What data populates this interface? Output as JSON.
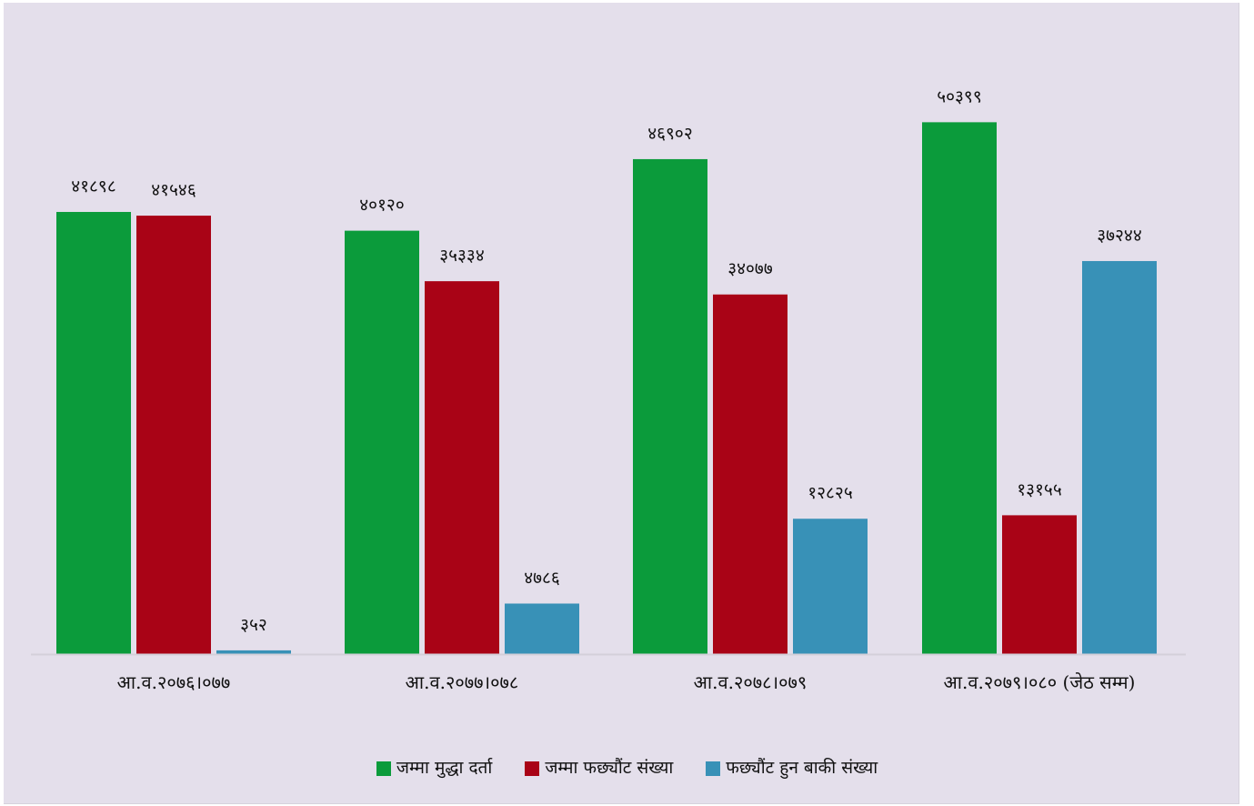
{
  "colors": {
    "background": "#e4dfeb",
    "axis": "#d3cfd9"
  },
  "legend": [
    {
      "label": "जम्मा मुद्धा दर्ता",
      "color": "#0b9b3b"
    },
    {
      "label": "जम्मा फछ्यौंट संख्या",
      "color": "#a90316"
    },
    {
      "label": "फछ्यौंट हुन बाकी संख्या",
      "color": "#3891b7"
    }
  ],
  "chart_data": {
    "type": "bar",
    "categories": [
      "आ.व.२०७६।०७७",
      "आ.व.२०७७।०७८",
      "आ.व.२०७८।०७९",
      "आ.व.२०७९।०८० (जेठ सम्म)"
    ],
    "series": [
      {
        "name": "जम्मा मुद्धा दर्ता",
        "color": "#0b9b3b",
        "values": [
          41898,
          40120,
          46902,
          50399
        ],
        "labels": [
          "४१८९८",
          "४०१२०",
          "४६९०२",
          "५०३९९"
        ]
      },
      {
        "name": "जम्मा फछ्यौंट संख्या",
        "color": "#a90316",
        "values": [
          41546,
          35334,
          34077,
          13155
        ],
        "labels": [
          "४१५४६",
          "३५३३४",
          "३४०७७",
          "१३१५५"
        ]
      },
      {
        "name": "फछ्यौंट हुन बाकी संख्या",
        "color": "#3891b7",
        "values": [
          352,
          4786,
          12825,
          37244
        ],
        "labels": [
          "३५२",
          "४७८६",
          "१२८२५",
          "३७२४४"
        ]
      }
    ],
    "ylim": [
      0,
      60000
    ],
    "grid": false,
    "legend_position": "bottom"
  }
}
